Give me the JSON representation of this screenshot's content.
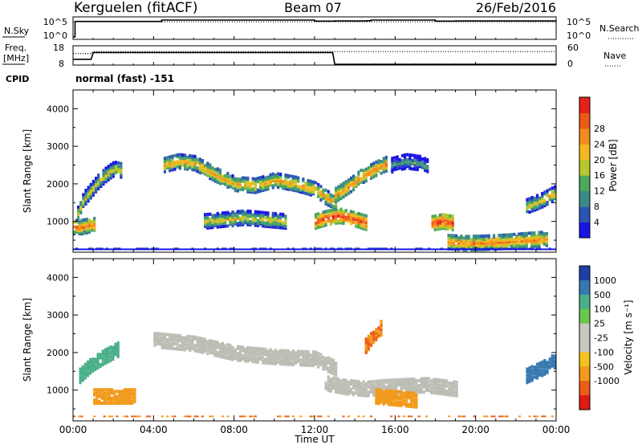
{
  "header": {
    "station": "Kerguelen (fitACF)",
    "beam": "Beam 07",
    "date": "26/Feb/2016"
  },
  "noise_panel": {
    "left_label": "N.Sky",
    "left_ticks": [
      "10^5",
      "10^0"
    ],
    "right_label": "N.Search",
    "right_ticks": [
      "10^5",
      "10^0"
    ]
  },
  "freq_panel": {
    "left_label_1": "Freq.",
    "left_label_2": "[MHz]",
    "left_ticks": [
      "18",
      "8"
    ],
    "right_label": "Nave",
    "right_ticks": [
      "60",
      "0"
    ],
    "cpid_label": "CPID",
    "cpid_value": "normal (fast) -151"
  },
  "time_axis": {
    "xlabel": "Time UT",
    "ticks": [
      "00:00",
      "04:00",
      "08:00",
      "12:00",
      "16:00",
      "20:00",
      "00:00"
    ]
  },
  "power_panel": {
    "ylabel": "Slant Range [km]",
    "yticks": [
      "1000",
      "2000",
      "3000",
      "4000"
    ],
    "colorbar_label": "Power [dB]",
    "colorbar_ticks": [
      "4",
      "8",
      "12",
      "16",
      "20",
      "24",
      "28"
    ]
  },
  "velocity_panel": {
    "ylabel": "Slant Range [km]",
    "yticks": [
      "1000",
      "2000",
      "3000",
      "4000"
    ],
    "colorbar_label": "Velocity [m s⁻¹]",
    "colorbar_ticks": [
      "1000",
      "500",
      "100",
      "25",
      "-25",
      "-100",
      "-500",
      "-1000"
    ]
  },
  "chart_data": [
    {
      "type": "line",
      "title": "N.Sky / N.Search",
      "x_range_hours": [
        0,
        24
      ],
      "series": [
        {
          "name": "N.Sky",
          "x": [
            0,
            0.1,
            4.3,
            4.4,
            12,
            13,
            14.6,
            14.8,
            18,
            19,
            24
          ],
          "y_log10": [
            0,
            4.6,
            4.6,
            5.0,
            4.7,
            4.75,
            4.8,
            5.0,
            4.7,
            4.75,
            4.7
          ]
        },
        {
          "name": "N.Search",
          "x": [
            0,
            24
          ],
          "y_log10": [
            4.5,
            4.5
          ]
        }
      ]
    },
    {
      "type": "line",
      "title": "Freq / Nave",
      "x_range_hours": [
        0,
        24
      ],
      "series": [
        {
          "name": "Freq.",
          "x": [
            0,
            0.9,
            1.0,
            12.9,
            13.0,
            24
          ],
          "y": [
            11,
            11,
            14.5,
            14.5,
            8.4,
            8.4
          ]
        },
        {
          "name": "Nave",
          "x": [
            0,
            0.9,
            1.0,
            24
          ],
          "y": [
            36,
            36,
            42,
            42
          ]
        }
      ]
    },
    {
      "type": "heatmap",
      "title": "Power [dB]",
      "x_range_hours": [
        0,
        24
      ],
      "ylim_km": [
        180,
        4500
      ],
      "ground_scatter_range_km": 280,
      "features": [
        {
          "x": [
            0.2,
            0.5,
            0.9,
            1.2,
            1.6,
            2.0,
            2.4
          ],
          "range_km": [
            1200,
            1600,
            1850,
            2050,
            2250,
            2400,
            2350
          ],
          "power_db": 18
        },
        {
          "x": [
            4.5,
            5.2,
            6.0,
            7.0,
            8.0,
            9.0,
            10.0,
            11.0,
            12.0,
            12.5,
            13.0
          ],
          "range_km": [
            2500,
            2600,
            2550,
            2250,
            2000,
            1950,
            2100,
            2000,
            1850,
            1650,
            1500
          ],
          "power_db": 21
        },
        {
          "x": [
            13.0,
            13.7,
            14.3,
            15.0,
            15.6
          ],
          "range_km": [
            1700,
            1950,
            2200,
            2400,
            2550
          ],
          "power_db": 23
        },
        {
          "x": [
            15.8,
            16.5,
            17.2,
            17.6
          ],
          "range_km": [
            2500,
            2600,
            2550,
            2450
          ],
          "power_db": 12
        },
        {
          "x": [
            12.0,
            12.6,
            13.2,
            14.0,
            14.6
          ],
          "range_km": [
            1000,
            1100,
            1150,
            1050,
            950
          ],
          "power_db": 27
        },
        {
          "x": [
            17.8,
            18.3,
            18.9
          ],
          "range_km": [
            950,
            1000,
            950
          ],
          "power_db": 28
        },
        {
          "x": [
            18.6,
            19.4,
            20.4,
            21.5,
            22.5,
            23.5
          ],
          "range_km": [
            450,
            420,
            430,
            460,
            500,
            540
          ],
          "power_db": 23
        },
        {
          "x": [
            0.0,
            0.4,
            0.8,
            1.1
          ],
          "range_km": [
            850,
            850,
            900,
            900
          ],
          "power_db": 24
        },
        {
          "x": [
            6.5,
            7.5,
            8.5,
            9.5,
            10.5
          ],
          "range_km": [
            1000,
            1050,
            1100,
            1050,
            1000
          ],
          "power_db": 18
        },
        {
          "x": [
            22.5,
            23.2,
            23.9
          ],
          "range_km": [
            1400,
            1550,
            1750
          ],
          "power_db": 19
        }
      ]
    },
    {
      "type": "heatmap",
      "title": "Velocity [m s⁻¹]",
      "x_range_hours": [
        0,
        24
      ],
      "ylim_km": [
        180,
        4500
      ],
      "features": [
        {
          "x": [
            4.0,
            6.0,
            8.0,
            10.0,
            12.0,
            13.0
          ],
          "range_km": [
            2350,
            2250,
            2000,
            1900,
            1850,
            1600
          ],
          "velocity": 0
        },
        {
          "x": [
            12.5,
            13.5,
            14.5,
            15.5,
            17.5,
            19.0
          ],
          "range_km": [
            1200,
            1100,
            1050,
            1100,
            1150,
            1050
          ],
          "velocity": 0
        },
        {
          "x": [
            0.3,
            0.9,
            1.5,
            2.2
          ],
          "range_km": [
            1400,
            1700,
            1900,
            2100
          ],
          "velocity": 200
        },
        {
          "x": [
            22.5,
            23.3,
            23.9
          ],
          "range_km": [
            1400,
            1600,
            1800
          ],
          "velocity": 300
        },
        {
          "x": [
            14.5,
            15.0,
            15.3
          ],
          "range_km": [
            2200,
            2500,
            2700
          ],
          "velocity": -300
        },
        {
          "x": [
            1.0,
            2.0,
            3.0
          ],
          "range_km": [
            850,
            850,
            850
          ],
          "velocity": -150
        },
        {
          "x": [
            15.0,
            16.0,
            17.0
          ],
          "range_km": [
            850,
            800,
            750
          ],
          "velocity": -200
        }
      ]
    }
  ],
  "colors": {
    "power_scale": [
      "#1a14e6",
      "#2a55b5",
      "#3b8a8a",
      "#4da95a",
      "#b6c72f",
      "#f4b81e",
      "#f28c1c",
      "#ee5a15",
      "#e8201a"
    ],
    "velocity_scale": [
      "#1c3fa8",
      "#3679b0",
      "#4bb08a",
      "#69c84b",
      "#c8c8c0",
      "#c8c8c0",
      "#f4c31e",
      "#f29a1c",
      "#ec5d18",
      "#e01a14"
    ],
    "ground_scatter": "#bdbdb5",
    "line": "#000000"
  }
}
